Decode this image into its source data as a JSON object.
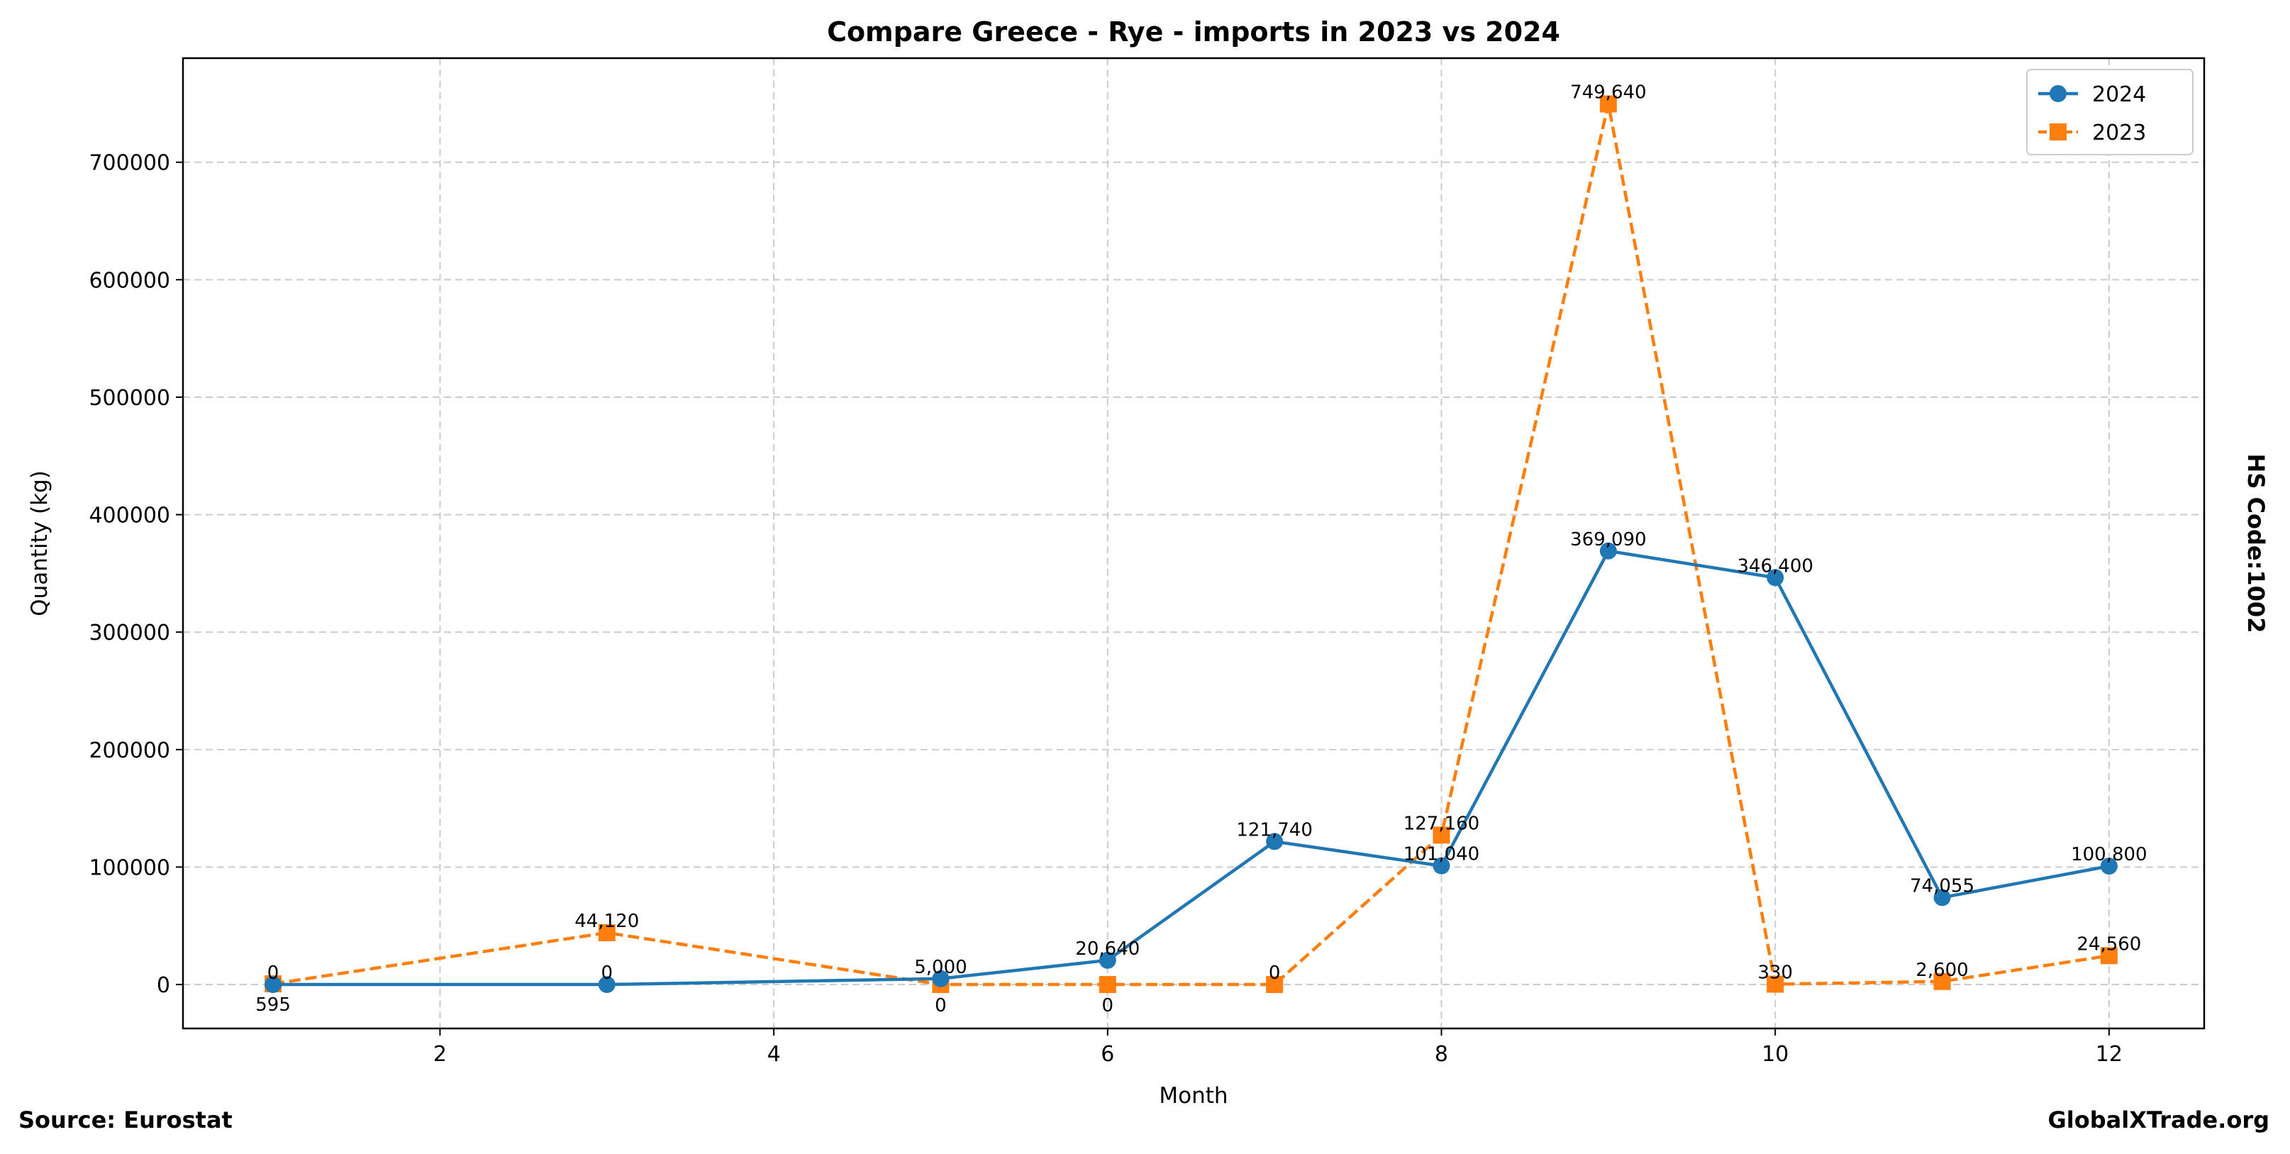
{
  "chart_data": {
    "type": "line",
    "title": "Compare Greece - Rye - imports in 2023 vs 2024",
    "xlabel": "Month",
    "ylabel": "Quantity (kg)",
    "xlim": [
      0.46,
      12.57
    ],
    "ylim": [
      -37400,
      788600
    ],
    "xticks": [
      2,
      4,
      6,
      8,
      10,
      12
    ],
    "yticks": [
      0,
      100000,
      200000,
      300000,
      400000,
      500000,
      600000,
      700000
    ],
    "grid": true,
    "legend_position": "top-right",
    "series": [
      {
        "name": "2024",
        "color": "#1f77b4",
        "marker": "circle",
        "linestyle": "solid",
        "x": [
          1,
          3,
          5,
          6,
          7,
          8,
          9,
          10,
          11,
          12
        ],
        "values": [
          0,
          0,
          5000,
          20640,
          121740,
          101040,
          369090,
          346400,
          74055,
          100800
        ],
        "labels": [
          "0",
          "0",
          "5,000",
          "20,640",
          "121,740",
          "101,040",
          "369,090",
          "346,400",
          "74,055",
          "100,800"
        ]
      },
      {
        "name": "2023",
        "color": "#ff7f0e",
        "marker": "square",
        "linestyle": "dashed",
        "x": [
          1,
          3,
          5,
          6,
          7,
          8,
          9,
          10,
          11,
          12
        ],
        "values": [
          595,
          44120,
          0,
          0,
          0,
          127160,
          749640,
          330,
          2600,
          24560
        ],
        "labels": [
          "595",
          "44,120",
          "0",
          "0",
          "0",
          "127,160",
          "749,640",
          "330",
          "2,600",
          "24,560"
        ]
      }
    ]
  },
  "side_label": "HS Code:1002",
  "source": "Source: Eurostat",
  "brand": "GlobalXTrade.org"
}
